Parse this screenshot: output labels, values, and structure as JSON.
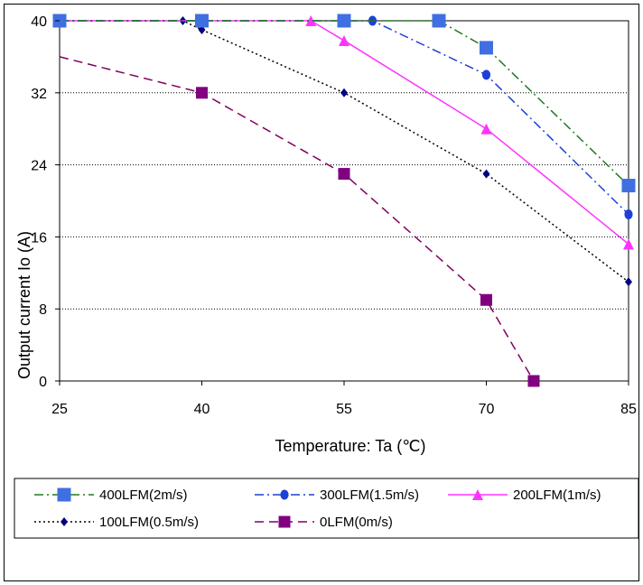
{
  "chart_data": {
    "type": "line",
    "title": "",
    "xlabel": "Temperature: Ta (℃)",
    "ylabel": "Output current Io (A)",
    "xlim": [
      25,
      85
    ],
    "ylim": [
      0,
      40
    ],
    "xticks": [
      "25",
      "40",
      "55",
      "70",
      "85"
    ],
    "yticks": [
      "0",
      "8",
      "16",
      "24",
      "32",
      "40"
    ],
    "grid": "horizontal-dotted",
    "legend_position": "bottom",
    "series": [
      {
        "name": "400LFM(2m/s)",
        "color": "#3f6fe0",
        "line_color": "#1f7a1f",
        "dash": "10,4,2,4",
        "marker": "square",
        "points": [
          [
            25,
            40
          ],
          [
            40,
            40
          ],
          [
            55,
            40
          ],
          [
            65,
            40
          ],
          [
            70,
            37
          ],
          [
            85,
            21.7
          ]
        ],
        "marker_points": [
          [
            25,
            40
          ],
          [
            40,
            40
          ],
          [
            55,
            40
          ],
          [
            65,
            40
          ],
          [
            70,
            37
          ],
          [
            85,
            21.7
          ]
        ]
      },
      {
        "name": "300LFM(1.5m/s)",
        "color": "#1f3fd6",
        "line_color": "#1f3fd6",
        "dash": "10,4,2,4",
        "marker": "circle",
        "points": [
          [
            25,
            40
          ],
          [
            55,
            40
          ],
          [
            58,
            40
          ],
          [
            70,
            34
          ],
          [
            85,
            18.5
          ]
        ],
        "marker_points": [
          [
            55,
            40
          ],
          [
            58,
            40
          ],
          [
            70,
            34
          ],
          [
            85,
            18.5
          ]
        ]
      },
      {
        "name": "200LFM(1m/s)",
        "color": "#ff33ff",
        "line_color": "#ff33ff",
        "dash": "",
        "marker": "triangle",
        "points": [
          [
            25,
            40
          ],
          [
            40,
            40
          ],
          [
            51.5,
            40
          ],
          [
            55,
            37.8
          ],
          [
            70,
            28
          ],
          [
            85,
            15.2
          ]
        ],
        "marker_points": [
          [
            40,
            40
          ],
          [
            51.5,
            40
          ],
          [
            55,
            37.8
          ],
          [
            70,
            28
          ],
          [
            85,
            15.2
          ]
        ]
      },
      {
        "name": "100LFM(0.5m/s)",
        "color": "#000080",
        "line_color": "#000000",
        "dash": "2,3",
        "marker": "diamond",
        "points": [
          [
            25,
            40
          ],
          [
            38,
            40
          ],
          [
            40,
            39
          ],
          [
            55,
            32
          ],
          [
            70,
            23
          ],
          [
            85,
            11
          ]
        ],
        "marker_points": [
          [
            25,
            40
          ],
          [
            38,
            40
          ],
          [
            40,
            39
          ],
          [
            55,
            32
          ],
          [
            70,
            23
          ],
          [
            85,
            11
          ]
        ]
      },
      {
        "name": "0LFM(0m/s)",
        "color": "#800080",
        "line_color": "#800060",
        "dash": "10,6",
        "marker": "square",
        "points": [
          [
            25,
            36
          ],
          [
            40,
            32
          ],
          [
            55,
            23
          ],
          [
            70,
            9
          ],
          [
            75,
            0
          ]
        ],
        "marker_points": [
          [
            40,
            32
          ],
          [
            55,
            23
          ],
          [
            70,
            9
          ],
          [
            75,
            0
          ]
        ]
      }
    ]
  }
}
